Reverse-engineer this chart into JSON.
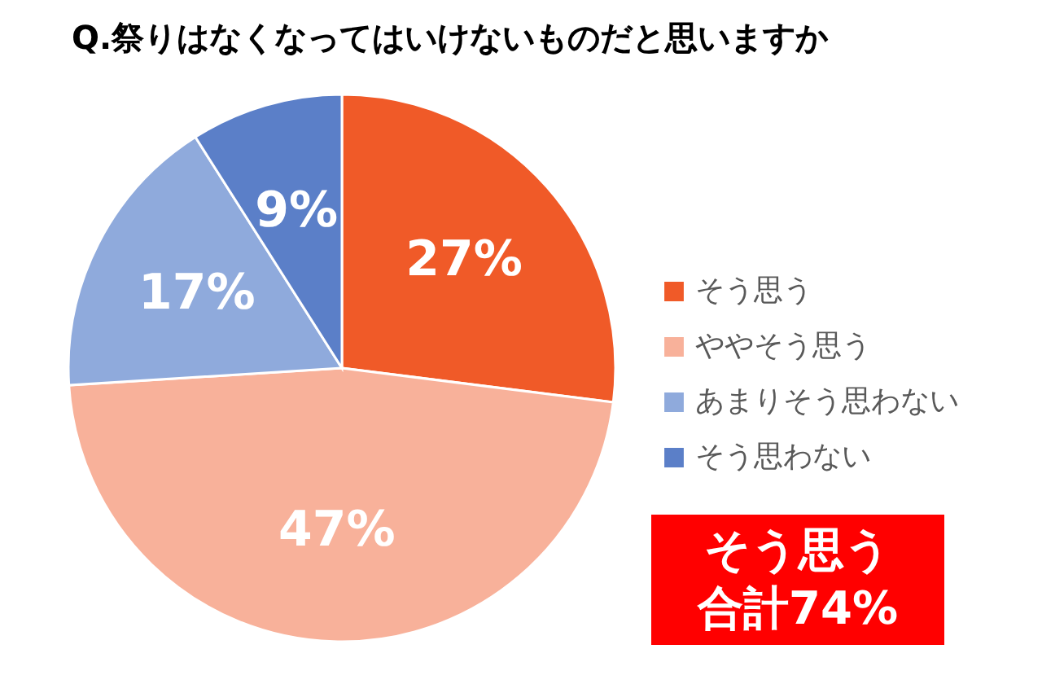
{
  "chart_data": {
    "type": "pie",
    "title": "Q.祭りはなくなってはいけないものだと思いますか",
    "categories": [
      "そう思う",
      "ややそう思う",
      "あまりそう思わない",
      "そう思わない"
    ],
    "values": [
      27,
      47,
      17,
      9
    ],
    "colors": [
      "#f05a28",
      "#f8b19a",
      "#8faadc",
      "#5b7fc8"
    ],
    "value_labels": [
      "27%",
      "47%",
      "17%",
      "9%"
    ],
    "legend": "right",
    "annotations": [
      "そう思う",
      "合計74%"
    ]
  }
}
